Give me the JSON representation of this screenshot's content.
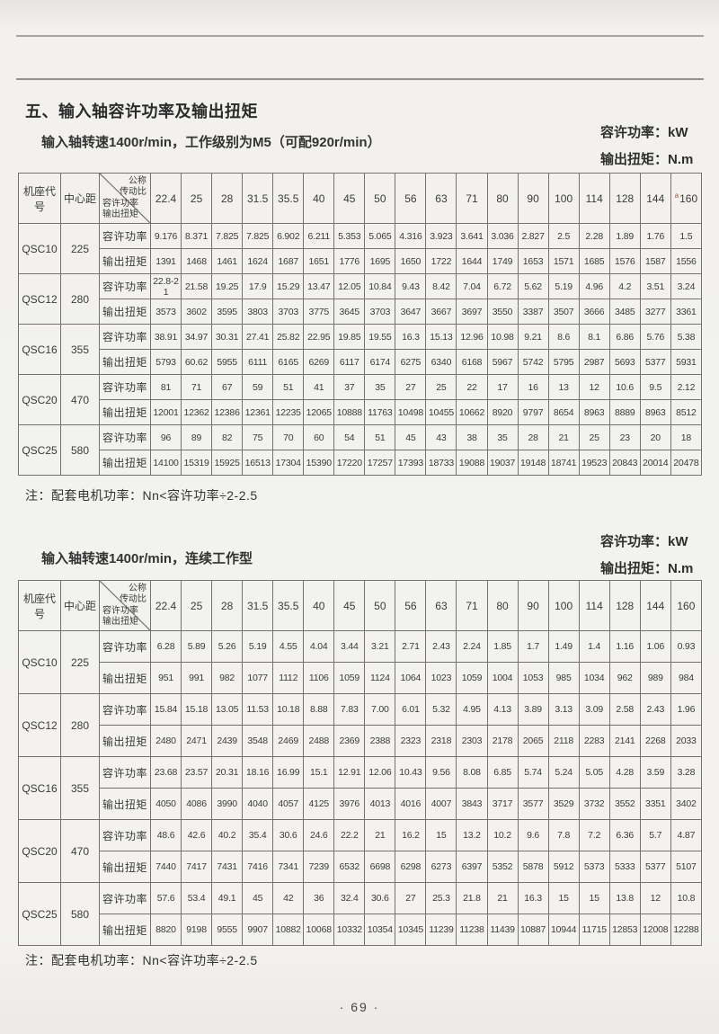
{
  "page": {
    "section_title": "五、输入轴容许功率及输出扭矩",
    "footer": "· 69 ·"
  },
  "colors": {
    "paper": "#f3f2ef",
    "ink": "#333333",
    "table_line": "#75736f",
    "scan_mark": "#a8563a"
  },
  "units": {
    "power_line": "容许功率：kW",
    "torque_line": "输出扭矩：N.m"
  },
  "tables": [
    {
      "subtitle": "输入轴转速1400r/min，工作级别为M5（可配920r/min）",
      "note": "注：配套电机功率：Nn<容许功率÷2-2.5",
      "header": {
        "frame_col": "机座代号",
        "center_col": "中心距",
        "diag_top": [
          "公称",
          "传动比"
        ],
        "diag_bottom": [
          "容许功率",
          "输出扭矩"
        ],
        "ratios": [
          "22.4",
          "25",
          "28",
          "31.5",
          "35.5",
          "40",
          "45",
          "50",
          "56",
          "63",
          "71",
          "80",
          "90",
          "100",
          "114",
          "128",
          "144",
          "160"
        ],
        "ratio_superscript": "a"
      },
      "row_labels": {
        "power": "容许功率",
        "torque": "输出扭矩"
      },
      "rows": [
        {
          "model": "QSC10",
          "center": "225",
          "power": [
            "9.176",
            "8.371",
            "7.825",
            "7.825",
            "6.902",
            "6.211",
            "5.353",
            "5.065",
            "4.316",
            "3.923",
            "3.641",
            "3.036",
            "2.827",
            "2.5",
            "2.28",
            "1.89",
            "1.76",
            "1.5"
          ],
          "torque": [
            "1391",
            "1468",
            "1461",
            "1624",
            "1687",
            "1651",
            "1776",
            "1695",
            "1650",
            "1722",
            "1644",
            "1749",
            "1653",
            "1571",
            "1685",
            "1576",
            "1587",
            "1556"
          ]
        },
        {
          "model": "QSC12",
          "center": "280",
          "power": [
            "22.8-21",
            "21.58",
            "19.25",
            "17.9",
            "15.29",
            "13.47",
            "12.05",
            "10.84",
            "9.43",
            "8.42",
            "7.04",
            "6.72",
            "5.62",
            "5.19",
            "4.96",
            "4.2",
            "3.51",
            "3.24"
          ],
          "torque": [
            "3573",
            "3602",
            "3595",
            "3803",
            "3703",
            "3775",
            "3645",
            "3703",
            "3647",
            "3667",
            "3697",
            "3550",
            "3387",
            "3507",
            "3666",
            "3485",
            "3277",
            "3361"
          ]
        },
        {
          "model": "QSC16",
          "center": "355",
          "power": [
            "38.91",
            "34.97",
            "30.31",
            "27.41",
            "25.82",
            "22.95",
            "19.85",
            "19.55",
            "16.3",
            "15.13",
            "12.96",
            "10.98",
            "9.21",
            "8.6",
            "8.1",
            "6.86",
            "5.76",
            "5.38"
          ],
          "torque": [
            "5793",
            "60.62",
            "5955",
            "6111",
            "6165",
            "6269",
            "6117",
            "6174",
            "6275",
            "6340",
            "6168",
            "5967",
            "5742",
            "5795",
            "2987",
            "5693",
            "5377",
            "5931"
          ]
        },
        {
          "model": "QSC20",
          "center": "470",
          "power": [
            "81",
            "71",
            "67",
            "59",
            "51",
            "41",
            "37",
            "35",
            "27",
            "25",
            "22",
            "17",
            "16",
            "13",
            "12",
            "10.6",
            "9.5",
            "2.12"
          ],
          "torque": [
            "12001",
            "12362",
            "12386",
            "12361",
            "12235",
            "12065",
            "10888",
            "11763",
            "10498",
            "10455",
            "10662",
            "8920",
            "9797",
            "8654",
            "8963",
            "8889",
            "8963",
            "8512"
          ]
        },
        {
          "model": "QSC25",
          "center": "580",
          "power": [
            "96",
            "89",
            "82",
            "75",
            "70",
            "60",
            "54",
            "51",
            "45",
            "43",
            "38",
            "35",
            "28",
            "21",
            "25",
            "23",
            "20",
            "18"
          ],
          "torque": [
            "14100",
            "15319",
            "15925",
            "16513",
            "17304",
            "15390",
            "17220",
            "17257",
            "17393",
            "18733",
            "19088",
            "19037",
            "19148",
            "18741",
            "19523",
            "20843",
            "20014",
            "20478"
          ]
        }
      ]
    },
    {
      "subtitle": "输入轴转速1400r/min，连续工作型",
      "note": "注：配套电机功率：Nn<容许功率÷2-2.5",
      "header": {
        "frame_col": "机座代号",
        "center_col": "中心距",
        "diag_top": [
          "公称",
          "传动比"
        ],
        "diag_bottom": [
          "容许功率",
          "输出扭矩"
        ],
        "ratios": [
          "22.4",
          "25",
          "28",
          "31.5",
          "35.5",
          "40",
          "45",
          "50",
          "56",
          "63",
          "71",
          "80",
          "90",
          "100",
          "114",
          "128",
          "144",
          "160"
        ]
      },
      "row_labels": {
        "power": "容许功率",
        "torque": "输出扭矩"
      },
      "rows": [
        {
          "model": "QSC10",
          "center": "225",
          "power": [
            "6.28",
            "5.89",
            "5.26",
            "5.19",
            "4.55",
            "4.04",
            "3.44",
            "3.21",
            "2.71",
            "2.43",
            "2.24",
            "1.85",
            "1.7",
            "1.49",
            "1.4",
            "1.16",
            "1.06",
            "0.93"
          ],
          "torque": [
            "951",
            "991",
            "982",
            "1077",
            "1112",
            "1106",
            "1059",
            "1124",
            "1064",
            "1023",
            "1059",
            "1004",
            "1053",
            "985",
            "1034",
            "962",
            "989",
            "984"
          ]
        },
        {
          "model": "QSC12",
          "center": "280",
          "power": [
            "15.84",
            "15.18",
            "13.05",
            "11.53",
            "10.18",
            "8.88",
            "7.83",
            "7.00",
            "6.01",
            "5.32",
            "4.95",
            "4.13",
            "3.89",
            "3.13",
            "3.09",
            "2.58",
            "2.43",
            "1.96"
          ],
          "torque": [
            "2480",
            "2471",
            "2439",
            "3548",
            "2469",
            "2488",
            "2369",
            "2388",
            "2323",
            "2318",
            "2303",
            "2178",
            "2065",
            "2118",
            "2283",
            "2141",
            "2268",
            "2033"
          ]
        },
        {
          "model": "QSC16",
          "center": "355",
          "power": [
            "23.68",
            "23.57",
            "20.31",
            "18.16",
            "16.99",
            "15.1",
            "12.91",
            "12.06",
            "10.43",
            "9.56",
            "8.08",
            "6.85",
            "5.74",
            "5.24",
            "5.05",
            "4.28",
            "3.59",
            "3.28"
          ],
          "torque": [
            "4050",
            "4086",
            "3990",
            "4040",
            "4057",
            "4125",
            "3976",
            "4013",
            "4016",
            "4007",
            "3843",
            "3717",
            "3577",
            "3529",
            "3732",
            "3552",
            "3351",
            "3402"
          ]
        },
        {
          "model": "QSC20",
          "center": "470",
          "power": [
            "48.6",
            "42.6",
            "40.2",
            "35.4",
            "30.6",
            "24.6",
            "22.2",
            "21",
            "16.2",
            "15",
            "13.2",
            "10.2",
            "9.6",
            "7.8",
            "7.2",
            "6.36",
            "5.7",
            "4.87"
          ],
          "torque": [
            "7440",
            "7417",
            "7431",
            "7416",
            "7341",
            "7239",
            "6532",
            "6698",
            "6298",
            "6273",
            "6397",
            "5352",
            "5878",
            "5912",
            "5373",
            "5333",
            "5377",
            "5107"
          ]
        },
        {
          "model": "QSC25",
          "center": "580",
          "power": [
            "57.6",
            "53.4",
            "49.1",
            "45",
            "42",
            "36",
            "32.4",
            "30.6",
            "27",
            "25.3",
            "21.8",
            "21",
            "16.3",
            "15",
            "15",
            "13.8",
            "12",
            "10.8"
          ],
          "torque": [
            "8820",
            "9198",
            "9555",
            "9907",
            "10882",
            "10068",
            "10332",
            "10354",
            "10345",
            "11239",
            "11238",
            "11439",
            "10887",
            "10944",
            "11715",
            "12853",
            "12008",
            "12288"
          ]
        }
      ]
    }
  ]
}
